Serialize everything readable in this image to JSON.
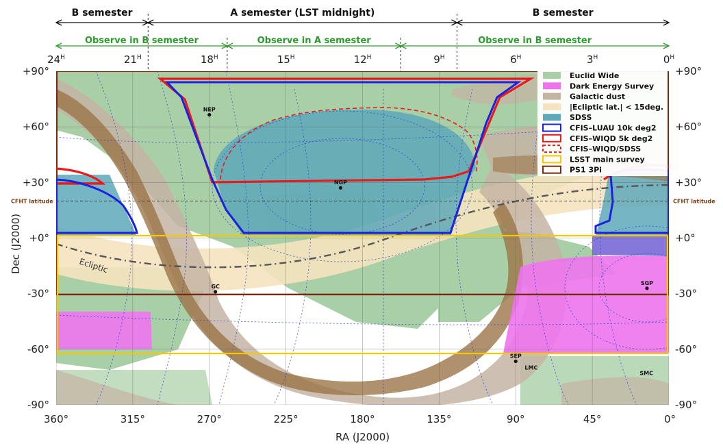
{
  "semesters": [
    {
      "label": "B semester",
      "ra_from": 24,
      "ra_to": 20.4
    },
    {
      "label": "A semester (LST midnight)",
      "ra_from": 20.4,
      "ra_to": 8.3
    },
    {
      "label": "B semester",
      "ra_from": 8.3,
      "ra_to": 0
    }
  ],
  "observe": [
    {
      "label": "Observe in B semester",
      "ra_from": 24,
      "ra_to": 17.3
    },
    {
      "label": "Observe in A semester",
      "ra_from": 17.3,
      "ra_to": 10.5
    },
    {
      "label": "Observe in B semester",
      "ra_from": 10.5,
      "ra_to": 0
    }
  ],
  "hour_ticks": [
    {
      "h": 24,
      "label": "24",
      "sup": "H"
    },
    {
      "h": 21,
      "label": "21",
      "sup": "H"
    },
    {
      "h": 18,
      "label": "18",
      "sup": "H"
    },
    {
      "h": 15,
      "label": "15",
      "sup": "H"
    },
    {
      "h": 12,
      "label": "12",
      "sup": "H"
    },
    {
      "h": 9,
      "label": "9",
      "sup": "H"
    },
    {
      "h": 6,
      "label": "6",
      "sup": "H"
    },
    {
      "h": 3,
      "label": "3",
      "sup": "H"
    },
    {
      "h": 0,
      "label": "0",
      "sup": "H"
    }
  ],
  "ra_ticks": [
    {
      "deg": 360,
      "label": "360°"
    },
    {
      "deg": 315,
      "label": "315°"
    },
    {
      "deg": 270,
      "label": "270°"
    },
    {
      "deg": 225,
      "label": "225°"
    },
    {
      "deg": 180,
      "label": "180°"
    },
    {
      "deg": 135,
      "label": "135°"
    },
    {
      "deg": 90,
      "label": "90°"
    },
    {
      "deg": 45,
      "label": "45°"
    },
    {
      "deg": 0,
      "label": "0°"
    }
  ],
  "dec_ticks": [
    {
      "deg": 90,
      "label": "+90°"
    },
    {
      "deg": 60,
      "label": "+60°"
    },
    {
      "deg": 30,
      "label": "+30°"
    },
    {
      "deg": 0,
      "label": "+0°"
    },
    {
      "deg": -30,
      "label": "-30°"
    },
    {
      "deg": -60,
      "label": "-60°"
    },
    {
      "deg": -90,
      "label": "-90°"
    }
  ],
  "axes": {
    "xlabel": "RA (J2000)",
    "ylabel": "Dec (J2000)"
  },
  "cfht": {
    "label": "CFHT latitude",
    "dec": 20
  },
  "ecliptic_label": "Ecliptic",
  "points": [
    {
      "name": "NEP",
      "ra": 270,
      "dec": 66.5
    },
    {
      "name": "NGP",
      "ra": 192.9,
      "dec": 27.1
    },
    {
      "name": "GC",
      "ra": 266.4,
      "dec": -29
    },
    {
      "name": "SGP",
      "ra": 12.9,
      "dec": -27.1
    },
    {
      "name": "SEP",
      "ra": 90,
      "dec": -66.5
    },
    {
      "name": "LMC",
      "ra": 80.9,
      "dec": -69.8
    },
    {
      "name": "SMC",
      "ra": 13.2,
      "dec": -72.8
    }
  ],
  "legend": [
    {
      "label": "Euclid Wide",
      "type": "fill",
      "color": "#a9cfa7"
    },
    {
      "label": "Dark Energy Survey",
      "type": "fill",
      "color": "#ee74ee"
    },
    {
      "label": "Galactic dust",
      "type": "fill",
      "color": "#c4b4a3"
    },
    {
      "label": "|Ecliptic lat.| < 15deg.",
      "type": "fill",
      "color": "#f5e3c0"
    },
    {
      "label": "SDSS",
      "type": "fill",
      "color": "#5ea8b9"
    },
    {
      "label": "CFIS–LUAU 10k deg2",
      "type": "outline",
      "color": "#1a22e0"
    },
    {
      "label": "CFIS–WIQD 5k deg2",
      "type": "outline",
      "color": "#e81a1a"
    },
    {
      "label": "CFIS–WIQD/SDSS",
      "type": "dashed",
      "color": "#e81a1a"
    },
    {
      "label": "LSST main survey",
      "type": "outline",
      "color": "#f5c800"
    },
    {
      "label": "PS1 3Pi",
      "type": "outline",
      "color": "#7a2a10"
    }
  ],
  "colors": {
    "euclid": "#a9cfa7",
    "des": "#ee74ee",
    "dust_light": "#c4b4a3",
    "dust_dark": "#9b7548",
    "ecliptic": "#f5e3c0",
    "sdss": "#5ea8b9",
    "luau": "#1a22e0",
    "wiqd": "#e81a1a",
    "lsst": "#f5c800",
    "ps1": "#7a2a10",
    "observe": "#2e9a2e"
  }
}
